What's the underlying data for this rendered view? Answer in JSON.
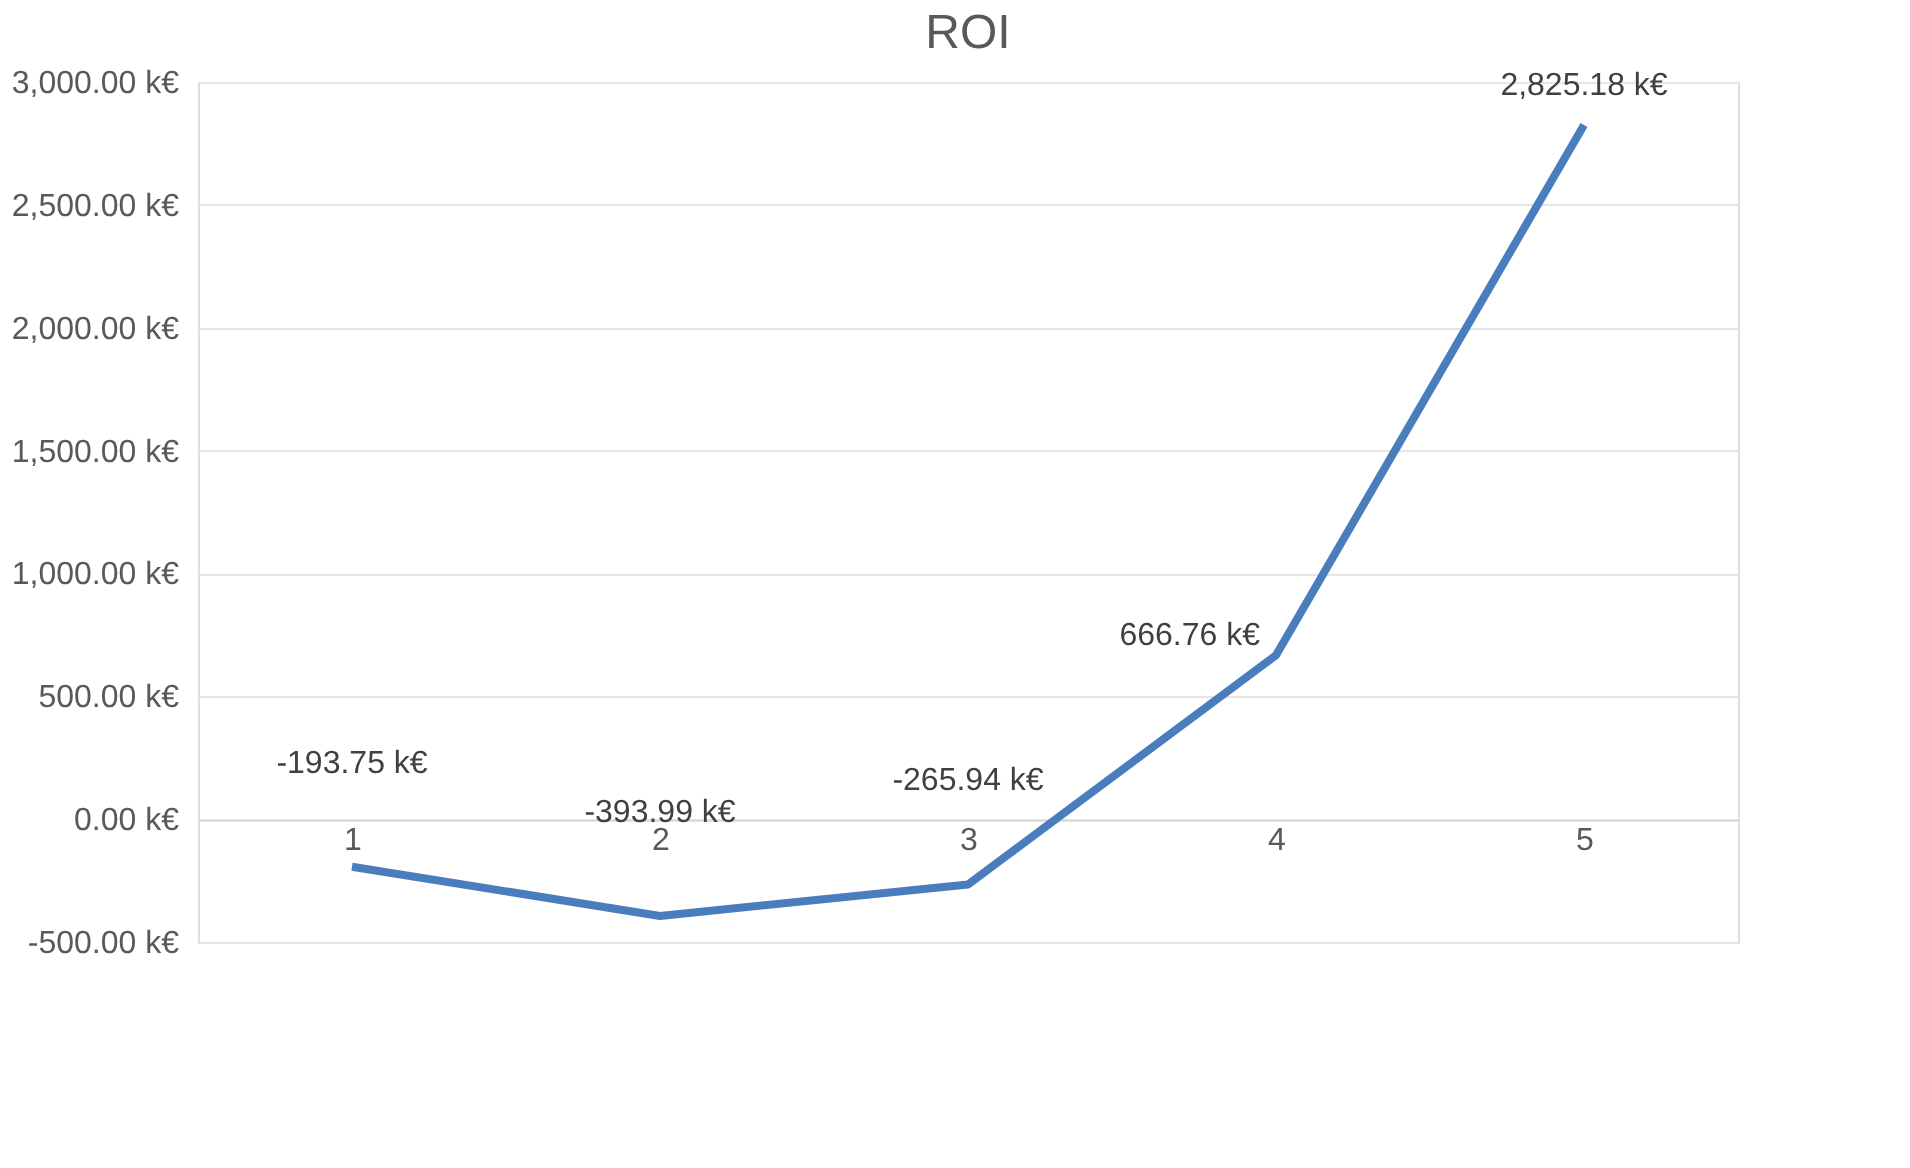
{
  "chart_data": {
    "type": "line",
    "title": "ROI",
    "categories": [
      "1",
      "2",
      "3",
      "4",
      "5"
    ],
    "series": [
      {
        "color": "#4a7dbd",
        "values": [
          -193.75,
          -393.99,
          -265.94,
          666.76,
          2825.18
        ],
        "value_labels": [
          "-193.75 k€",
          "-393.99 k€",
          "-265.94 k€",
          "666.76 k€",
          "2,825.18 k€"
        ]
      }
    ],
    "ylim": [
      -500,
      3000
    ],
    "yticks": [
      {
        "value": -500,
        "label": "-500.00 k€"
      },
      {
        "value": 0,
        "label": "0.00 k€"
      },
      {
        "value": 500,
        "label": "500.00 k€"
      },
      {
        "value": 1000,
        "label": "1,000.00 k€"
      },
      {
        "value": 1500,
        "label": "1,500.00 k€"
      },
      {
        "value": 2000,
        "label": "2,000.00 k€"
      },
      {
        "value": 2500,
        "label": "2,500.00 k€"
      },
      {
        "value": 3000,
        "label": "3,000.00 k€"
      }
    ],
    "grid": "y",
    "legend": false,
    "marker": "none",
    "line_style": "solid"
  }
}
